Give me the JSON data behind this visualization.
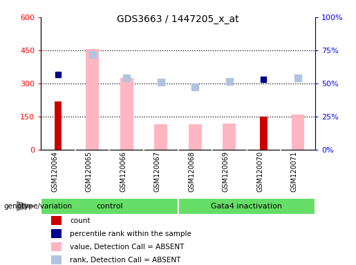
{
  "title": "GDS3663 / 1447205_x_at",
  "samples": [
    "GSM120064",
    "GSM120065",
    "GSM120066",
    "GSM120067",
    "GSM120068",
    "GSM120069",
    "GSM120070",
    "GSM120071"
  ],
  "count": [
    220,
    0,
    0,
    0,
    0,
    0,
    150,
    0
  ],
  "percentile_rank": [
    340,
    null,
    null,
    null,
    null,
    null,
    320,
    null
  ],
  "value_absent": [
    0,
    455,
    325,
    115,
    115,
    120,
    0,
    160
  ],
  "rank_absent": [
    null,
    430,
    325,
    305,
    285,
    310,
    null,
    325
  ],
  "ylim_left": [
    0,
    600
  ],
  "ylim_right": [
    0,
    100
  ],
  "yticks_left": [
    0,
    150,
    300,
    450,
    600
  ],
  "yticks_right": [
    0,
    25,
    50,
    75,
    100
  ],
  "ytick_labels_left": [
    "0",
    "150",
    "300",
    "450",
    "600"
  ],
  "ytick_labels_right": [
    "0%",
    "25%",
    "50%",
    "75%",
    "100%"
  ],
  "count_color": "#CC0000",
  "percentile_color": "#00008B",
  "value_absent_color": "#FFB6C1",
  "rank_absent_color": "#B0C4DE",
  "tick_area_bg": "#C8C8C8",
  "green_bg": "#66DD66",
  "legend_labels": [
    "count",
    "percentile rank within the sample",
    "value, Detection Call = ABSENT",
    "rank, Detection Call = ABSENT"
  ],
  "legend_colors": [
    "#CC0000",
    "#00008B",
    "#FFB6C1",
    "#B0C4DE"
  ]
}
